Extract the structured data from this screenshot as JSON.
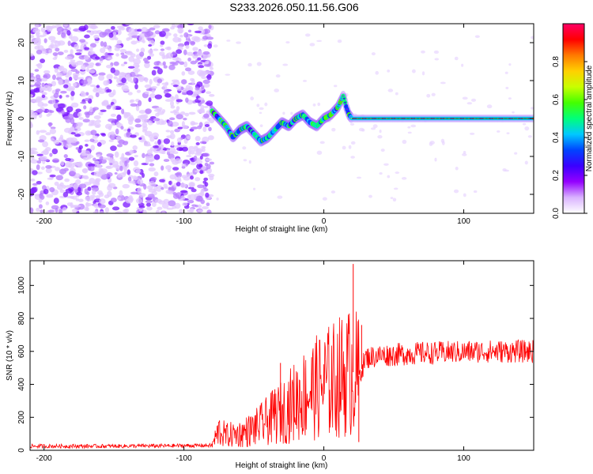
{
  "title": "S233.2026.050.11.56.G06",
  "chart_data": [
    {
      "type": "heatmap",
      "xlabel": "Height of straight line (km)",
      "ylabel": "Frequency (Hz)",
      "xlim": [
        -210,
        150
      ],
      "ylim": [
        -25,
        25
      ],
      "xticks": [
        -200,
        -100,
        0,
        100
      ],
      "yticks": [
        -20,
        -10,
        0,
        10,
        20
      ],
      "colorbar": {
        "label": "Normalized spectral amplitude",
        "range": [
          0,
          1
        ],
        "ticks": [
          "0.0",
          "0.2",
          "0.4",
          "0.6",
          "0.8"
        ],
        "colors": [
          "#ffffff",
          "#d9b3ff",
          "#9400ff",
          "#3a00ff",
          "#0044ff",
          "#00c8ff",
          "#00ff7a",
          "#44ff00",
          "#c8ff00",
          "#ffd000",
          "#ff7a00",
          "#ff0000",
          "#ff0066"
        ]
      },
      "noise_region": {
        "x_range": [
          -210,
          -80
        ],
        "y_range": [
          -25,
          25
        ]
      },
      "ridge": {
        "x": [
          -80,
          -75,
          -70,
          -65,
          -60,
          -55,
          -50,
          -45,
          -40,
          -35,
          -30,
          -25,
          -20,
          -15,
          -10,
          -5,
          0,
          5,
          10,
          14,
          16,
          18,
          20,
          25,
          30,
          40,
          50,
          60,
          70,
          80,
          90,
          100,
          110,
          120,
          130,
          140,
          150
        ],
        "y": [
          2,
          0,
          -2,
          -5,
          -3,
          -2,
          -4,
          -6,
          -5,
          -3,
          -1,
          -2,
          0,
          1,
          -1,
          -2,
          0,
          1,
          3,
          6,
          3,
          1,
          0,
          0,
          0,
          0,
          0,
          0,
          0,
          0,
          0,
          0,
          0,
          0,
          0,
          0,
          0
        ]
      },
      "grid": false
    },
    {
      "type": "line",
      "xlabel": "Height of straight line (km)",
      "ylabel": "SNR (10 * v/v)",
      "xlim": [
        -210,
        150
      ],
      "ylim": [
        0,
        1150
      ],
      "xticks": [
        -200,
        -100,
        0,
        100
      ],
      "yticks": [
        0,
        200,
        400,
        600,
        800,
        1000
      ],
      "series_color": "#ff0000",
      "trend": {
        "x": [
          -210,
          -150,
          -100,
          -80,
          -75,
          -70,
          -60,
          -50,
          -40,
          -30,
          -20,
          -10,
          0,
          10,
          20,
          25,
          30,
          40,
          50,
          60,
          70,
          80,
          90,
          100,
          110,
          120,
          130,
          140,
          150
        ],
        "y": [
          25,
          25,
          28,
          30,
          120,
          90,
          100,
          130,
          180,
          230,
          300,
          360,
          400,
          440,
          480,
          450,
          560,
          575,
          580,
          585,
          590,
          590,
          595,
          595,
          600,
          600,
          600,
          600,
          600
        ]
      },
      "spikes": [
        {
          "x": -31,
          "y": 530
        },
        {
          "x": -35,
          "y": 370
        },
        {
          "x": 21,
          "y": 1130
        },
        {
          "x": 27,
          "y": 760
        },
        {
          "x": 25,
          "y": 50
        }
      ],
      "grid": false
    }
  ]
}
